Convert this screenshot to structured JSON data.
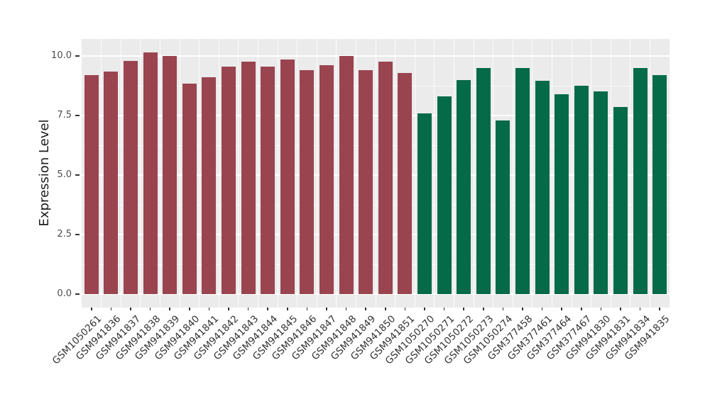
{
  "chart_data": {
    "type": "bar",
    "title": "",
    "xlabel": "",
    "ylabel": "Expression Level",
    "ylim": [
      0,
      10.7
    ],
    "y_ticks": [
      0,
      2.5,
      5,
      7.5,
      10
    ],
    "y_tick_labels": [
      "0.0",
      "2.5",
      "5.0",
      "7.5",
      "10.0"
    ],
    "y_minor_ticks": [
      1.25,
      3.75,
      6.25,
      8.75
    ],
    "grid": "on",
    "legend": "none",
    "panel_background": "#EBEBEB",
    "grid_color": "#FFFFFF",
    "group_colors": {
      "g1": "#9A4450",
      "g2": "#056A47"
    },
    "bars": [
      {
        "label": "GSM1050261",
        "value": 9.2,
        "group": "g1"
      },
      {
        "label": "GSM941836",
        "value": 9.35,
        "group": "g1"
      },
      {
        "label": "GSM941837",
        "value": 9.8,
        "group": "g1"
      },
      {
        "label": "GSM941838",
        "value": 10.15,
        "group": "g1"
      },
      {
        "label": "GSM941839",
        "value": 10.0,
        "group": "g1"
      },
      {
        "label": "GSM941840",
        "value": 8.85,
        "group": "g1"
      },
      {
        "label": "GSM941841",
        "value": 9.1,
        "group": "g1"
      },
      {
        "label": "GSM941842",
        "value": 9.55,
        "group": "g1"
      },
      {
        "label": "GSM941843",
        "value": 9.75,
        "group": "g1"
      },
      {
        "label": "GSM941844",
        "value": 9.55,
        "group": "g1"
      },
      {
        "label": "GSM941845",
        "value": 9.85,
        "group": "g1"
      },
      {
        "label": "GSM941846",
        "value": 9.4,
        "group": "g1"
      },
      {
        "label": "GSM941847",
        "value": 9.6,
        "group": "g1"
      },
      {
        "label": "GSM941848",
        "value": 10.0,
        "group": "g1"
      },
      {
        "label": "GSM941849",
        "value": 9.4,
        "group": "g1"
      },
      {
        "label": "GSM941850",
        "value": 9.75,
        "group": "g1"
      },
      {
        "label": "GSM941851",
        "value": 9.3,
        "group": "g1"
      },
      {
        "label": "GSM1050270",
        "value": 7.6,
        "group": "g2"
      },
      {
        "label": "GSM1050271",
        "value": 8.3,
        "group": "g2"
      },
      {
        "label": "GSM1050272",
        "value": 9.0,
        "group": "g2"
      },
      {
        "label": "GSM1050273",
        "value": 9.5,
        "group": "g2"
      },
      {
        "label": "GSM1050274",
        "value": 7.3,
        "group": "g2"
      },
      {
        "label": "GSM377458",
        "value": 9.5,
        "group": "g2"
      },
      {
        "label": "GSM377461",
        "value": 8.95,
        "group": "g2"
      },
      {
        "label": "GSM377464",
        "value": 8.4,
        "group": "g2"
      },
      {
        "label": "GSM377467",
        "value": 8.75,
        "group": "g2"
      },
      {
        "label": "GSM941830",
        "value": 8.5,
        "group": "g2"
      },
      {
        "label": "GSM941831",
        "value": 7.85,
        "group": "g2"
      },
      {
        "label": "GSM941834",
        "value": 9.5,
        "group": "g2"
      },
      {
        "label": "GSM941835",
        "value": 9.2,
        "group": "g2"
      }
    ]
  }
}
